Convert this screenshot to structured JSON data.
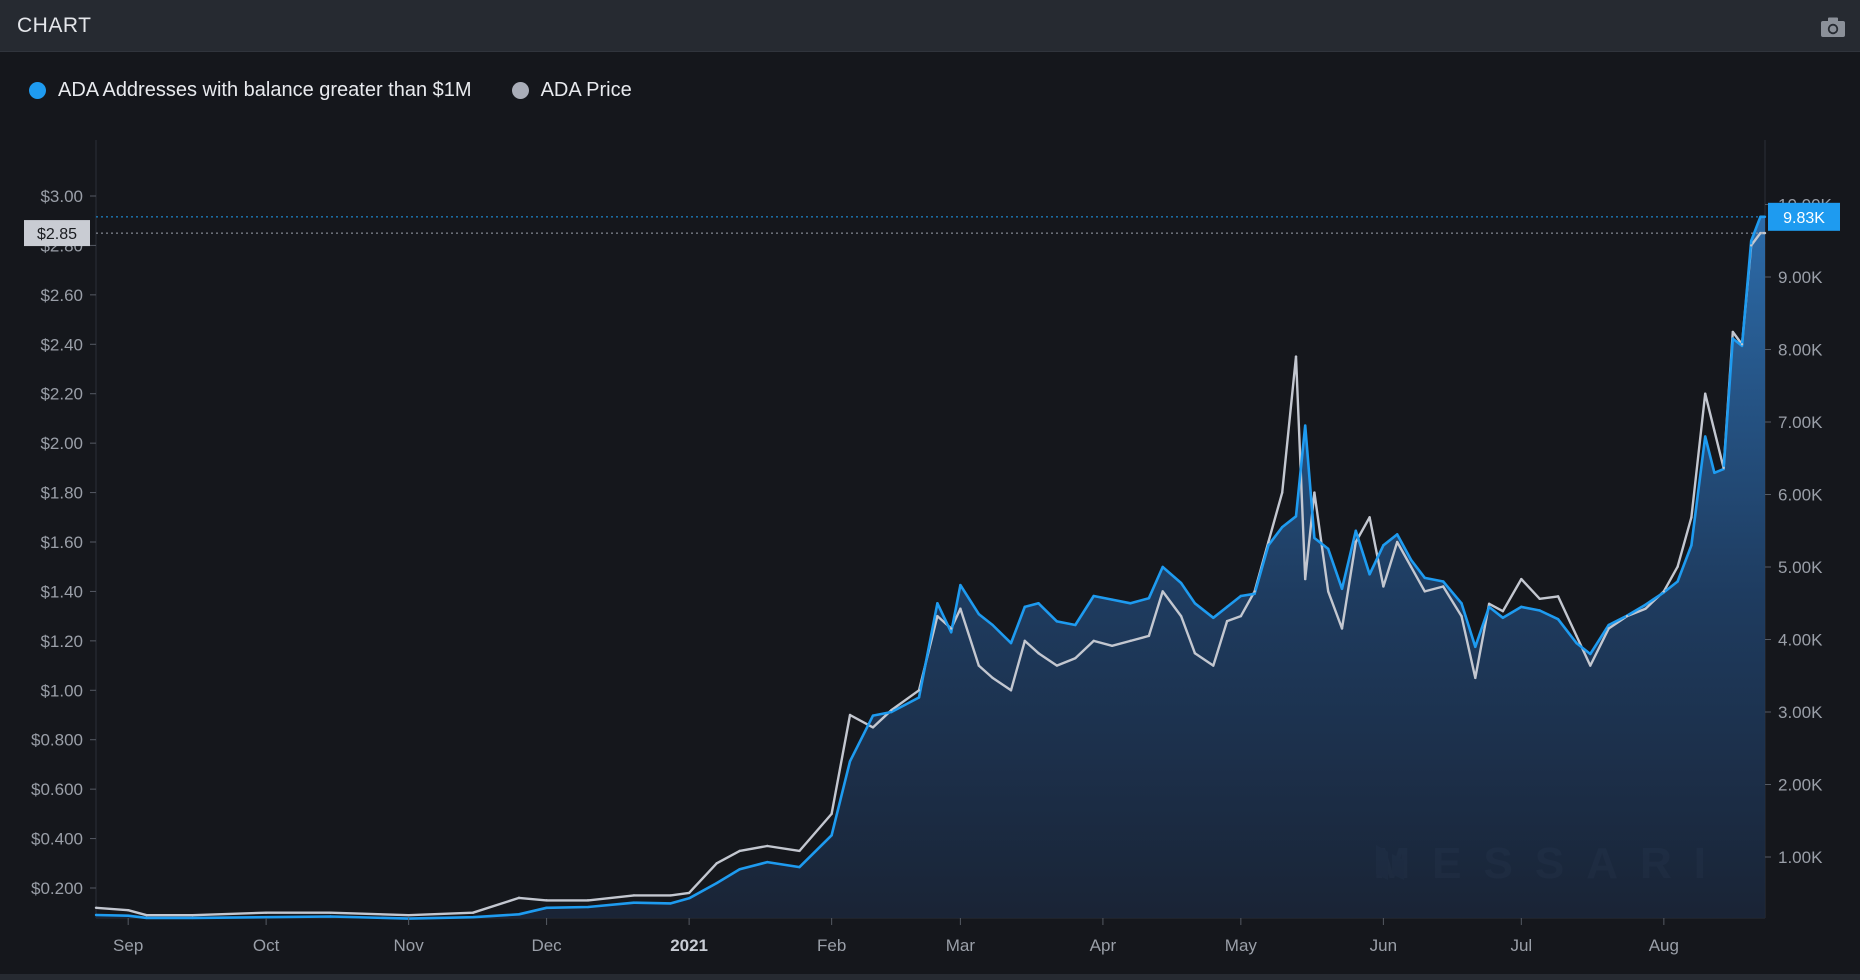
{
  "header": {
    "title": "CHART",
    "camera_icon": "camera-icon"
  },
  "legend": [
    {
      "label": "ADA Addresses with balance greater than $1M",
      "color": "#1e9bf0"
    },
    {
      "label": "ADA Price",
      "color": "#a9adb8"
    }
  ],
  "watermark": "MESSARI",
  "chart_data": {
    "type": "area",
    "x_tick_labels": [
      "Sep",
      "Oct",
      "Nov",
      "Dec",
      "2021",
      "Feb",
      "Mar",
      "Apr",
      "May",
      "Jun",
      "Jul",
      "Aug"
    ],
    "x_tick_dates": [
      "2020-09-01",
      "2020-10-01",
      "2020-11-01",
      "2020-12-01",
      "2021-01-01",
      "2021-02-01",
      "2021-03-01",
      "2021-04-01",
      "2021-05-01",
      "2021-06-01",
      "2021-07-01",
      "2021-08-01"
    ],
    "x_range": [
      "2020-08-25",
      "2021-08-23"
    ],
    "y_left": {
      "label": "ADA Price",
      "ticks": [
        "$0.200",
        "$0.400",
        "$0.600",
        "$0.800",
        "$1.00",
        "$1.20",
        "$1.40",
        "$1.60",
        "$1.80",
        "$2.00",
        "$2.20",
        "$2.40",
        "$2.60",
        "$2.80",
        "$3.00"
      ],
      "range": [
        0.1,
        3.0
      ]
    },
    "y_right": {
      "label": "ADA Addresses with balance greater than $1M",
      "ticks": [
        "1.00K",
        "2.00K",
        "3.00K",
        "4.00K",
        "5.00K",
        "6.00K",
        "7.00K",
        "8.00K",
        "9.00K",
        "10.00K"
      ],
      "range": [
        150,
        10000
      ]
    },
    "cursor_price_label": "$2.85",
    "cursor_count_label": "9.83K",
    "cursor_price": 2.85,
    "cursor_count": 9830,
    "series": [
      {
        "name": "ADA Addresses with balance greater than $1M",
        "axis": "right",
        "color": "#1e9bf0",
        "x": [
          "2020-08-25",
          "2020-09-01",
          "2020-09-05",
          "2020-09-15",
          "2020-10-01",
          "2020-10-15",
          "2020-11-01",
          "2020-11-15",
          "2020-11-25",
          "2020-12-01",
          "2020-12-10",
          "2020-12-20",
          "2020-12-28",
          "2021-01-01",
          "2021-01-07",
          "2021-01-12",
          "2021-01-18",
          "2021-01-25",
          "2021-02-01",
          "2021-02-05",
          "2021-02-10",
          "2021-02-14",
          "2021-02-20",
          "2021-02-24",
          "2021-02-27",
          "2021-03-01",
          "2021-03-05",
          "2021-03-08",
          "2021-03-12",
          "2021-03-15",
          "2021-03-18",
          "2021-03-22",
          "2021-03-26",
          "2021-03-30",
          "2021-04-03",
          "2021-04-07",
          "2021-04-11",
          "2021-04-14",
          "2021-04-18",
          "2021-04-21",
          "2021-04-25",
          "2021-04-28",
          "2021-05-01",
          "2021-05-04",
          "2021-05-07",
          "2021-05-10",
          "2021-05-13",
          "2021-05-15",
          "2021-05-17",
          "2021-05-20",
          "2021-05-23",
          "2021-05-26",
          "2021-05-29",
          "2021-06-01",
          "2021-06-04",
          "2021-06-07",
          "2021-06-10",
          "2021-06-14",
          "2021-06-18",
          "2021-06-21",
          "2021-06-24",
          "2021-06-27",
          "2021-07-01",
          "2021-07-05",
          "2021-07-09",
          "2021-07-13",
          "2021-07-16",
          "2021-07-20",
          "2021-07-24",
          "2021-07-28",
          "2021-08-01",
          "2021-08-04",
          "2021-08-07",
          "2021-08-10",
          "2021-08-12",
          "2021-08-14",
          "2021-08-16",
          "2021-08-18",
          "2021-08-20",
          "2021-08-22",
          "2021-08-23"
        ],
        "values": [
          200,
          190,
          160,
          160,
          170,
          180,
          150,
          170,
          210,
          300,
          310,
          370,
          360,
          430,
          640,
          830,
          930,
          860,
          1300,
          2320,
          2950,
          3000,
          3200,
          4500,
          4100,
          4750,
          4350,
          4200,
          3950,
          4450,
          4500,
          4250,
          4200,
          4600,
          4550,
          4500,
          4570,
          5000,
          4780,
          4500,
          4300,
          4450,
          4600,
          4630,
          5300,
          5550,
          5700,
          6950,
          5400,
          5250,
          4700,
          5500,
          4900,
          5300,
          5450,
          5100,
          4850,
          4800,
          4500,
          3900,
          4450,
          4300,
          4450,
          4400,
          4280,
          3950,
          3800,
          4200,
          4330,
          4480,
          4650,
          4800,
          5300,
          6800,
          6300,
          6350,
          8150,
          8050,
          9500,
          9830,
          9830
        ]
      },
      {
        "name": "ADA Price",
        "axis": "left",
        "color": "#c3c7d0",
        "x": [
          "2020-08-25",
          "2020-09-01",
          "2020-09-05",
          "2020-09-15",
          "2020-10-01",
          "2020-10-15",
          "2020-11-01",
          "2020-11-15",
          "2020-11-25",
          "2020-12-01",
          "2020-12-10",
          "2020-12-20",
          "2020-12-28",
          "2021-01-01",
          "2021-01-07",
          "2021-01-12",
          "2021-01-18",
          "2021-01-25",
          "2021-02-01",
          "2021-02-05",
          "2021-02-10",
          "2021-02-14",
          "2021-02-20",
          "2021-02-24",
          "2021-02-27",
          "2021-03-01",
          "2021-03-05",
          "2021-03-08",
          "2021-03-12",
          "2021-03-15",
          "2021-03-18",
          "2021-03-22",
          "2021-03-26",
          "2021-03-30",
          "2021-04-03",
          "2021-04-07",
          "2021-04-11",
          "2021-04-14",
          "2021-04-18",
          "2021-04-21",
          "2021-04-25",
          "2021-04-28",
          "2021-05-01",
          "2021-05-04",
          "2021-05-07",
          "2021-05-10",
          "2021-05-13",
          "2021-05-15",
          "2021-05-17",
          "2021-05-20",
          "2021-05-23",
          "2021-05-26",
          "2021-05-29",
          "2021-06-01",
          "2021-06-04",
          "2021-06-07",
          "2021-06-10",
          "2021-06-14",
          "2021-06-18",
          "2021-06-21",
          "2021-06-24",
          "2021-06-27",
          "2021-07-01",
          "2021-07-05",
          "2021-07-09",
          "2021-07-13",
          "2021-07-16",
          "2021-07-20",
          "2021-07-24",
          "2021-07-28",
          "2021-08-01",
          "2021-08-04",
          "2021-08-07",
          "2021-08-10",
          "2021-08-12",
          "2021-08-14",
          "2021-08-16",
          "2021-08-18",
          "2021-08-20",
          "2021-08-22",
          "2021-08-23"
        ],
        "values": [
          0.12,
          0.11,
          0.09,
          0.09,
          0.1,
          0.1,
          0.09,
          0.1,
          0.16,
          0.15,
          0.15,
          0.17,
          0.17,
          0.18,
          0.3,
          0.35,
          0.37,
          0.35,
          0.5,
          0.9,
          0.85,
          0.92,
          1.0,
          1.3,
          1.25,
          1.33,
          1.1,
          1.05,
          1.0,
          1.2,
          1.15,
          1.1,
          1.13,
          1.2,
          1.18,
          1.2,
          1.22,
          1.4,
          1.3,
          1.15,
          1.1,
          1.28,
          1.3,
          1.4,
          1.6,
          1.8,
          2.35,
          1.45,
          1.8,
          1.4,
          1.25,
          1.6,
          1.7,
          1.42,
          1.6,
          1.5,
          1.4,
          1.42,
          1.3,
          1.05,
          1.35,
          1.32,
          1.45,
          1.37,
          1.38,
          1.22,
          1.1,
          1.25,
          1.3,
          1.33,
          1.4,
          1.5,
          1.7,
          2.2,
          2.05,
          1.9,
          2.45,
          2.4,
          2.8,
          2.85,
          2.85
        ]
      }
    ]
  }
}
